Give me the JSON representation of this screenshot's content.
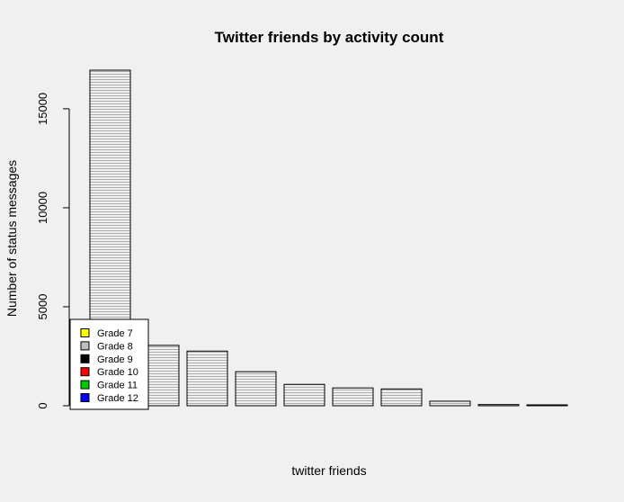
{
  "chart_data": {
    "type": "bar",
    "title": "Twitter friends by activity count",
    "xlabel": "twitter friends",
    "ylabel": "Number of status messages",
    "ylim": [
      0,
      17000
    ],
    "yticks": [
      0,
      5000,
      10000,
      15000
    ],
    "grid": false,
    "bar_fill": "horizontal-line hatching",
    "values": [
      16950,
      3050,
      2760,
      1720,
      1080,
      900,
      850,
      230,
      60,
      15
    ],
    "legend": {
      "placement": "bottom-left",
      "entries": [
        {
          "label": "Grade 7",
          "color": "#ffff00"
        },
        {
          "label": "Grade 8",
          "color": "#bebebe"
        },
        {
          "label": "Grade 9",
          "color": "#000000"
        },
        {
          "label": "Grade 10",
          "color": "#ff0000"
        },
        {
          "label": "Grade 11",
          "color": "#00cd00"
        },
        {
          "label": "Grade 12",
          "color": "#0000ff"
        }
      ]
    }
  }
}
